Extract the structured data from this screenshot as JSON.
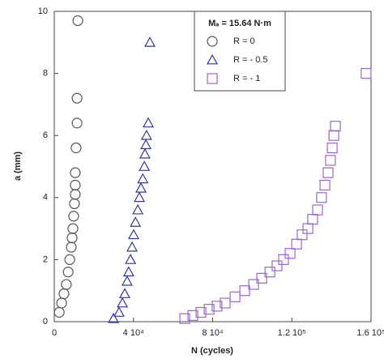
{
  "chart_data": {
    "type": "scatter",
    "xlabel": "N (cycles)",
    "ylabel": "a (mm)",
    "legend_title": "Mₐ = 15.64 N·m",
    "xlim": [
      0,
      160000
    ],
    "xticks": [
      0,
      {
        "value": 40000,
        "label": "4 10⁴"
      },
      {
        "value": 80000,
        "label": "8 10⁴"
      },
      {
        "value": 120000,
        "label": "1.2 10⁵"
      },
      {
        "value": 160000,
        "label": "1.6 10⁵"
      }
    ],
    "ylim": [
      0,
      10
    ],
    "yticks": [
      0,
      2,
      4,
      6,
      8,
      10
    ],
    "series": [
      {
        "name": "R = 0",
        "color": "#555555",
        "marker": "circle",
        "x": [
          2500,
          3700,
          4900,
          6100,
          7000,
          7800,
          8600,
          9000,
          9400,
          9800,
          10200,
          10600,
          10600,
          10600,
          11000,
          11500,
          11500,
          11900
        ],
        "y": [
          0.3,
          0.6,
          0.9,
          1.2,
          1.6,
          2.0,
          2.4,
          2.7,
          3.0,
          3.4,
          3.8,
          4.1,
          4.4,
          4.8,
          5.6,
          6.4,
          7.2,
          9.7
        ]
      },
      {
        "name": "R = - 0.5",
        "color": "#3333aa",
        "marker": "triangle",
        "x": [
          29900,
          32700,
          34400,
          35600,
          36800,
          37600,
          38500,
          39300,
          40100,
          41000,
          42200,
          43000,
          43800,
          44700,
          45500,
          45800,
          46300,
          46600,
          47500,
          48300
        ],
        "y": [
          0.1,
          0.3,
          0.6,
          0.9,
          1.3,
          1.6,
          2.0,
          2.4,
          2.8,
          3.2,
          3.6,
          4.0,
          4.3,
          4.6,
          5.0,
          5.4,
          5.7,
          6.0,
          6.4,
          9.0
        ]
      },
      {
        "name": "R = - 1",
        "color": "#9966cc",
        "marker": "square",
        "x": [
          65900,
          70000,
          74100,
          78200,
          82200,
          86300,
          91300,
          96200,
          100700,
          104800,
          108900,
          112500,
          115800,
          119100,
          122400,
          125200,
          128100,
          130500,
          133000,
          135000,
          136700,
          138300,
          139500,
          140400,
          141200,
          142000,
          157500
        ],
        "y": [
          0.1,
          0.2,
          0.3,
          0.4,
          0.5,
          0.6,
          0.8,
          1.0,
          1.2,
          1.4,
          1.6,
          1.8,
          2.0,
          2.2,
          2.5,
          2.8,
          3.0,
          3.3,
          3.6,
          4.0,
          4.4,
          4.8,
          5.2,
          5.6,
          6.0,
          6.3,
          8.0
        ]
      }
    ]
  }
}
